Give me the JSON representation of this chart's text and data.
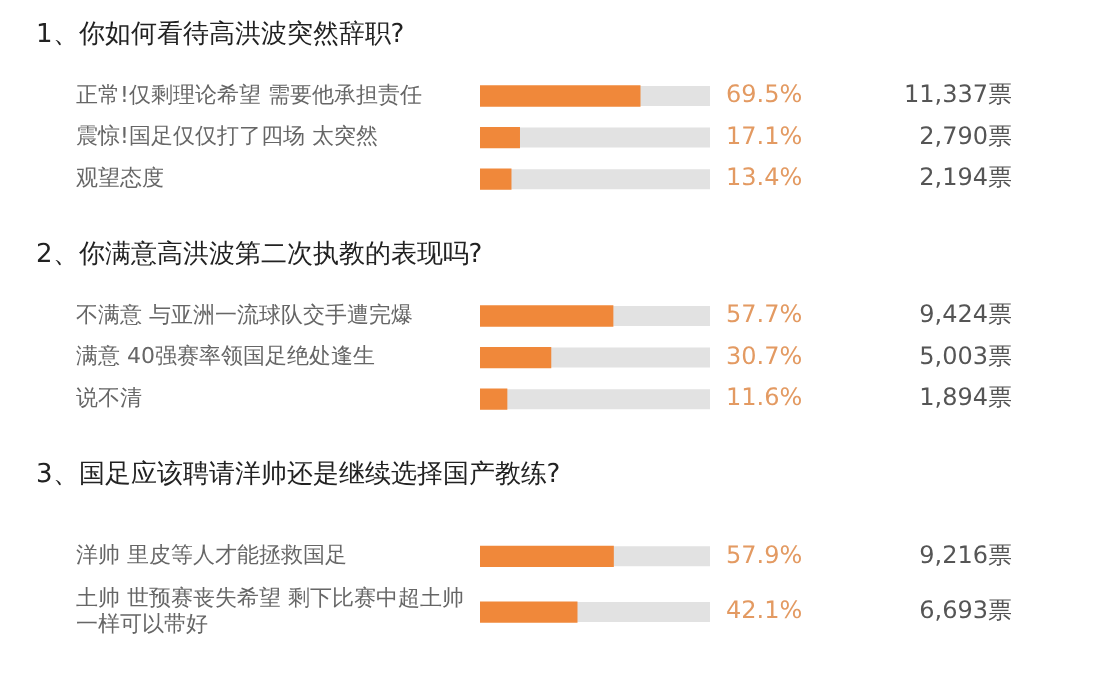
{
  "chart_data": [
    {
      "type": "bar",
      "orientation": "horizontal",
      "title": "1、你如何看待高洪波突然辞职?",
      "categories": [
        "正常!仅剩理论希望 需要他承担责任",
        "震惊!国足仅仅打了四场 太突然",
        "观望态度"
      ],
      "values": [
        69.5,
        17.1,
        13.4
      ],
      "value_labels": [
        "69.5%",
        "17.1%",
        "13.4%"
      ],
      "annotations": [
        "11,337票",
        "2,790票",
        "2,194票"
      ],
      "color": "#f0883a",
      "xlim": [
        0,
        100
      ],
      "tick_labels": "y",
      "grid": false,
      "legend": false
    },
    {
      "type": "bar",
      "orientation": "horizontal",
      "title": "2、你满意高洪波第二次执教的表现吗?",
      "categories": [
        "不满意 与亚洲一流球队交手遭完爆",
        "满意 40强赛率领国足绝处逢生",
        "说不清"
      ],
      "values": [
        57.7,
        30.7,
        11.6
      ],
      "value_labels": [
        "57.7%",
        "30.7%",
        "11.6%"
      ],
      "annotations": [
        "9,424票",
        "5,003票",
        "1,894票"
      ],
      "color": "#f0883a",
      "xlim": [
        0,
        100
      ],
      "tick_labels": "y",
      "grid": false,
      "legend": false
    },
    {
      "type": "bar",
      "orientation": "horizontal",
      "title": "3、国足应该聘请洋帅还是继续选择国产教练?",
      "categories": [
        "洋帅 里皮等人才能拯救国足",
        "土帅 世预赛丧失希望 剩下比赛中超土帅一样可以带好"
      ],
      "values": [
        57.9,
        42.1
      ],
      "value_labels": [
        "57.9%",
        "42.1%"
      ],
      "annotations": [
        "9,216票",
        "6,693票"
      ],
      "color": "#f0883a",
      "xlim": [
        0,
        100
      ],
      "tick_labels": "y",
      "grid": false,
      "legend": false
    }
  ]
}
